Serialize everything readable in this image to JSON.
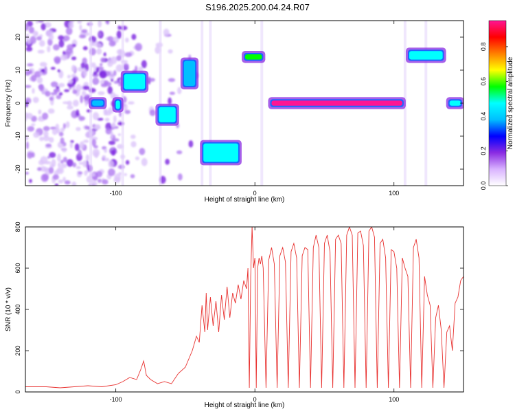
{
  "title": "S196.2025.200.04.24.R07",
  "colors": {
    "spectral_bg": "#ffffff",
    "snr_line": "#e8302e",
    "axis": "#000000"
  },
  "colorbar": {
    "label": "Normalized spectral amplitude",
    "ticks": [
      "0.0",
      "0.2",
      "0.4",
      "0.6",
      "0.8"
    ],
    "tick_values": [
      0.0,
      0.2,
      0.4,
      0.6,
      0.8
    ],
    "range": [
      0,
      0.95
    ],
    "colors": [
      "#ffffff",
      "#d9b3ff",
      "#8a2be2",
      "#0000ff",
      "#00bfff",
      "#00ffff",
      "#00ff00",
      "#ffff00",
      "#ff8000",
      "#ff0000",
      "#ff1493"
    ]
  },
  "chart_data": [
    {
      "type": "heatmap",
      "title": "S196.2025.200.04.24.R07",
      "xlabel": "Height of straight line (km)",
      "ylabel": "Frequency (Hz)",
      "xlim": [
        -165,
        150
      ],
      "ylim": [
        -25,
        25
      ],
      "xticks": [
        -100,
        0,
        100
      ],
      "yticks": [
        -20,
        -10,
        0,
        10,
        20
      ],
      "features": [
        {
          "x": [
            -118,
            -108
          ],
          "f": [
            -1,
            1
          ],
          "amp": 0.35,
          "desc": "band"
        },
        {
          "x": [
            -101,
            -96
          ],
          "f": [
            -2,
            1
          ],
          "amp": 0.45
        },
        {
          "x": [
            -95,
            -78
          ],
          "f": [
            4,
            9
          ],
          "amp": 0.45
        },
        {
          "x": [
            -70,
            -56
          ],
          "f": [
            -6,
            -1
          ],
          "amp": 0.45
        },
        {
          "x": [
            -52,
            -42
          ],
          "f": [
            5,
            13
          ],
          "amp": 0.4
        },
        {
          "x": [
            -38,
            -11
          ],
          "f": [
            -18,
            -12
          ],
          "amp": 0.5
        },
        {
          "x": [
            -8,
            6
          ],
          "f": [
            13,
            15
          ],
          "amp": 0.55
        },
        {
          "x": [
            11,
            107
          ],
          "f": [
            -1,
            1
          ],
          "amp": 0.95
        },
        {
          "x": [
            110,
            136
          ],
          "f": [
            13,
            16
          ],
          "amp": 0.5
        },
        {
          "x": [
            139,
            149
          ],
          "f": [
            -1,
            1
          ],
          "amp": 0.45
        }
      ]
    },
    {
      "type": "line",
      "xlabel": "Height of straight line (km)",
      "ylabel": "SNR (10 * v/v)",
      "xlim": [
        -165,
        150
      ],
      "ylim": [
        0,
        800
      ],
      "xticks": [
        -100,
        0,
        100
      ],
      "yticks": [
        0,
        200,
        400,
        600,
        800
      ],
      "series": [
        {
          "x": [
            -165,
            -150,
            -140,
            -130,
            -120,
            -110,
            -100,
            -95,
            -90,
            -85,
            -82,
            -80,
            -78,
            -75,
            -70,
            -65,
            -60,
            -55,
            -50,
            -45,
            -42,
            -40,
            -38,
            -36,
            -35,
            -34,
            -32,
            -30,
            -28,
            -26,
            -24,
            -22,
            -20,
            -18,
            -16,
            -14,
            -12,
            -10,
            -8,
            -6,
            -5,
            -4,
            -3,
            -2,
            -1,
            0,
            1,
            2,
            3,
            4,
            5,
            6,
            8,
            10,
            12,
            14,
            16,
            18,
            20,
            22,
            24,
            26,
            28,
            30,
            32,
            34,
            36,
            38,
            40,
            42,
            44,
            46,
            48,
            50,
            52,
            54,
            56,
            58,
            60,
            62,
            64,
            66,
            68,
            70,
            72,
            74,
            76,
            78,
            80,
            82,
            84,
            86,
            88,
            90,
            92,
            94,
            96,
            98,
            100,
            102,
            104,
            106,
            108,
            110,
            112,
            114,
            116,
            118,
            120,
            122,
            124,
            126,
            128,
            130,
            132,
            134,
            136,
            138,
            140,
            142,
            144,
            146,
            148,
            150
          ],
          "y": [
            25,
            25,
            20,
            25,
            30,
            25,
            35,
            50,
            70,
            60,
            110,
            150,
            80,
            60,
            40,
            50,
            40,
            90,
            120,
            200,
            270,
            240,
            420,
            290,
            480,
            300,
            460,
            320,
            440,
            290,
            470,
            350,
            510,
            360,
            480,
            430,
            520,
            450,
            540,
            500,
            600,
            20,
            560,
            800,
            600,
            650,
            20,
            600,
            650,
            620,
            660,
            600,
            20,
            640,
            700,
            620,
            20,
            660,
            700,
            630,
            20,
            680,
            720,
            650,
            20,
            660,
            700,
            690,
            20,
            700,
            760,
            700,
            20,
            720,
            760,
            680,
            20,
            740,
            760,
            720,
            20,
            760,
            800,
            760,
            20,
            770,
            780,
            710,
            20,
            780,
            800,
            750,
            20,
            720,
            740,
            650,
            20,
            690,
            680,
            600,
            20,
            650,
            600,
            560,
            20,
            700,
            740,
            650,
            20,
            560,
            470,
            420,
            20,
            360,
            420,
            300,
            20,
            290,
            320,
            200,
            430,
            460,
            540,
            560
          ]
        }
      ]
    }
  ]
}
